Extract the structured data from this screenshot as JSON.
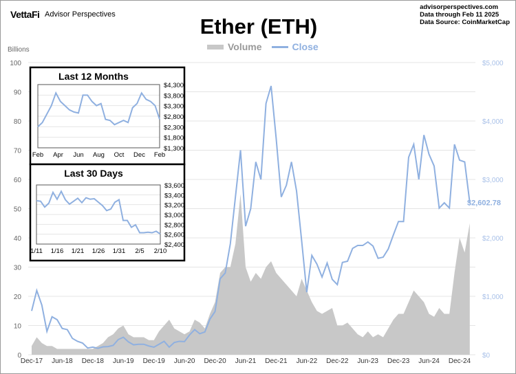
{
  "header": {
    "logo": "VettaFi",
    "brand": "Advisor Perspectives",
    "info": [
      "advisorperspectives.com",
      "Data through Feb 11 2025",
      "Data Source: CoinMarketCap"
    ]
  },
  "chart_data": [
    {
      "type": "line",
      "title": "Ether (ETH)",
      "ylabel_left": "Billions",
      "legend": [
        "Volume",
        "Close"
      ],
      "legend_position": "top-center",
      "colors": {
        "volume": "#c8c8c8",
        "close": "#8fb0e0"
      },
      "x_ticks": [
        "Dec-17",
        "Jun-18",
        "Dec-18",
        "Jun-19",
        "Dec-19",
        "Jun-20",
        "Dec-20",
        "Jun-21",
        "Dec-21",
        "Jun-22",
        "Dec-22",
        "Jun-23",
        "Dec-23",
        "Jun-24",
        "Dec-24"
      ],
      "y_left_ticks": [
        0,
        10,
        20,
        30,
        40,
        50,
        60,
        70,
        80,
        90,
        100
      ],
      "y_left_range": [
        0,
        100
      ],
      "y_right_ticks": [
        "$0",
        "$1,000",
        "$2,000",
        "$3,000",
        "$4,000",
        "$5,000"
      ],
      "y_right_range": [
        0,
        5000
      ],
      "last_value_label": "$2,602.78",
      "close_monthly": [
        750,
        1100,
        850,
        400,
        650,
        600,
        450,
        430,
        280,
        230,
        200,
        115,
        130,
        110,
        135,
        140,
        160,
        260,
        300,
        220,
        170,
        180,
        180,
        150,
        130,
        180,
        230,
        130,
        210,
        230,
        225,
        340,
        430,
        360,
        390,
        610,
        740,
        1300,
        1400,
        1900,
        2700,
        3500,
        2200,
        2500,
        3300,
        3000,
        4300,
        4600,
        3700,
        2700,
        2900,
        3300,
        2800,
        1950,
        1070,
        1700,
        1550,
        1330,
        1570,
        1290,
        1200,
        1580,
        1600,
        1820,
        1870,
        1870,
        1930,
        1860,
        1650,
        1670,
        1810,
        2050,
        2280,
        2280,
        3380,
        3600,
        3000,
        3760,
        3430,
        3230,
        2510,
        2600,
        2510,
        3600,
        3330,
        3300,
        2603
      ],
      "volume_monthly": [
        3,
        6,
        4,
        3,
        3,
        2,
        2,
        2,
        2,
        2,
        2,
        2,
        2,
        3,
        4,
        6,
        7,
        9,
        10,
        7,
        6,
        6,
        6,
        5,
        5,
        8,
        10,
        12,
        9,
        8,
        7,
        8,
        12,
        11,
        9,
        14,
        18,
        28,
        30,
        30,
        38,
        55,
        30,
        25,
        28,
        26,
        30,
        32,
        28,
        26,
        24,
        22,
        20,
        26,
        22,
        18,
        15,
        14,
        15,
        16,
        10,
        10,
        11,
        9,
        7,
        6,
        8,
        6,
        7,
        6,
        9,
        12,
        14,
        14,
        18,
        22,
        20,
        18,
        14,
        13,
        16,
        14,
        14,
        28,
        40,
        35,
        45
      ]
    },
    {
      "type": "line",
      "title": "Last 12 Months",
      "x_ticks": [
        "Feb",
        "Apr",
        "Jun",
        "Aug",
        "Oct",
        "Dec",
        "Feb"
      ],
      "y_ticks": [
        "$1,300",
        "$1,800",
        "$2,300",
        "$2,800",
        "$3,300",
        "$3,800",
        "$4,300"
      ],
      "y_range": [
        1300,
        4300
      ],
      "values": [
        2300,
        2500,
        2900,
        3300,
        3900,
        3500,
        3300,
        3100,
        3000,
        2950,
        3800,
        3800,
        3500,
        3300,
        3400,
        2650,
        2600,
        2400,
        2500,
        2600,
        2500,
        3200,
        3400,
        3900,
        3600,
        3500,
        3300,
        2650
      ]
    },
    {
      "type": "line",
      "title": "Last 30 Days",
      "x_ticks": [
        "1/11",
        "1/16",
        "1/21",
        "1/26",
        "1/31",
        "2/5",
        "2/10"
      ],
      "y_ticks": [
        "$2,400",
        "$2,600",
        "$2,800",
        "$3,000",
        "$3,200",
        "$3,400",
        "$3,600"
      ],
      "y_range": [
        2400,
        3600
      ],
      "values": [
        3280,
        3270,
        3150,
        3230,
        3450,
        3310,
        3470,
        3300,
        3210,
        3270,
        3330,
        3240,
        3340,
        3310,
        3320,
        3250,
        3180,
        3080,
        3110,
        3250,
        3300,
        2880,
        2880,
        2740,
        2790,
        2630,
        2630,
        2640,
        2630,
        2660,
        2603
      ]
    }
  ]
}
